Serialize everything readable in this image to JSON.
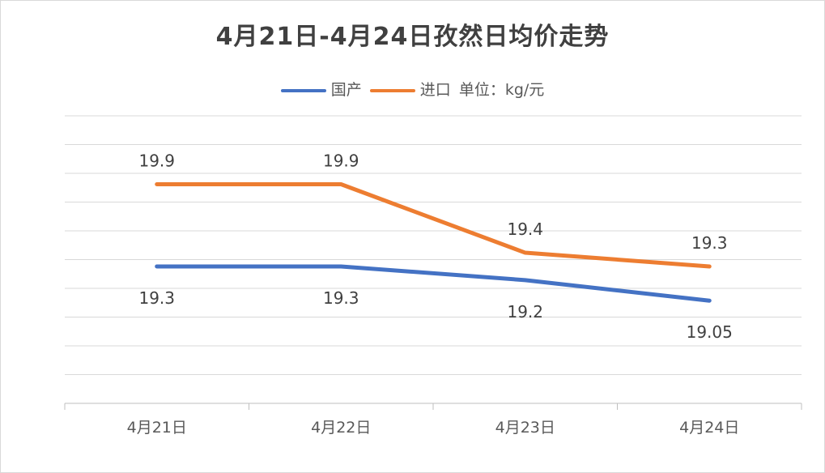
{
  "chart_data": {
    "type": "line",
    "title": "4月21日-4月24日孜然日均价走势",
    "unit_note": "单位：kg/元",
    "categories": [
      "4月21日",
      "4月22日",
      "4月23日",
      "4月24日"
    ],
    "series": [
      {
        "name": "国产",
        "color": "#4472C4",
        "values": [
          19.3,
          19.3,
          19.2,
          19.05
        ],
        "labels": [
          "19.3",
          "19.3",
          "19.2",
          "19.05"
        ],
        "label_position": "below"
      },
      {
        "name": "进口",
        "color": "#ED7D31",
        "values": [
          19.9,
          19.9,
          19.4,
          19.3
        ],
        "labels": [
          "19.9",
          "19.9",
          "19.4",
          "19.3"
        ],
        "label_position": "above"
      }
    ],
    "ylim": [
      18.3,
      20.4
    ],
    "grid": true,
    "legend": "top-center"
  }
}
